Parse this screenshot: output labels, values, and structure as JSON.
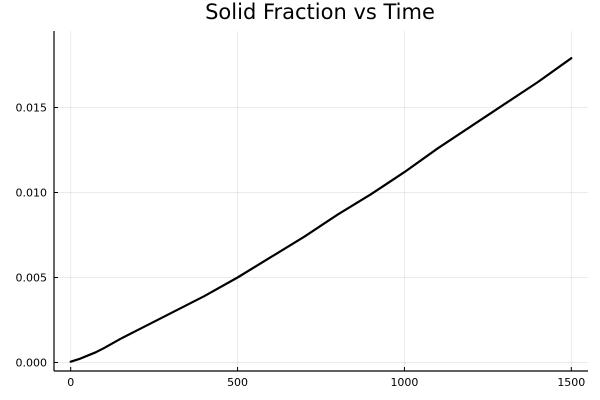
{
  "chart_data": {
    "type": "line",
    "title": "Solid Fraction vs Time",
    "xlabel": "",
    "ylabel": "",
    "xlim": [
      -50,
      1550
    ],
    "ylim": [
      -0.0005,
      0.0195
    ],
    "xticks": [
      0,
      500,
      1000,
      1500
    ],
    "xtick_labels": [
      "0",
      "500",
      "1000",
      "1500"
    ],
    "yticks": [
      0,
      0.005,
      0.01,
      0.015
    ],
    "ytick_labels": [
      "0.000",
      "0.005",
      "0.010",
      "0.015"
    ],
    "grid": true,
    "legend": "none",
    "line_color": "#000000",
    "series": [
      {
        "x": [
          0,
          25,
          50,
          75,
          100,
          150,
          200,
          300,
          400,
          500,
          600,
          700,
          800,
          900,
          1000,
          1100,
          1200,
          1300,
          1400,
          1500
        ],
        "y": [
          5e-05,
          0.0002,
          0.0004,
          0.0006,
          0.00085,
          0.0014,
          0.0019,
          0.0029,
          0.0039,
          0.005,
          0.0062,
          0.0074,
          0.0087,
          0.0099,
          0.0112,
          0.0126,
          0.0139,
          0.0152,
          0.0165,
          0.0179
        ]
      }
    ]
  }
}
